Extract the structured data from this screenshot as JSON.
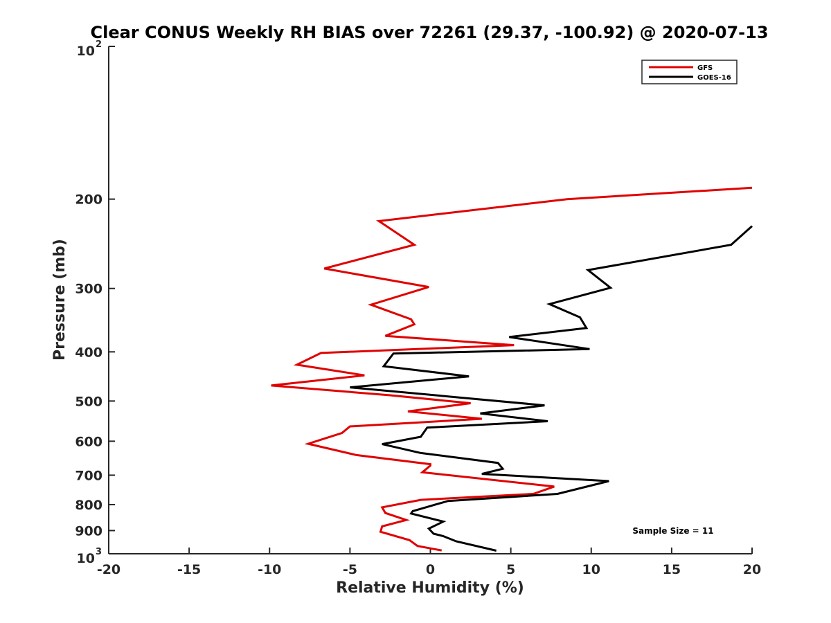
{
  "chart_data": {
    "type": "line",
    "title": "Clear CONUS Weekly RH BIAS over 72261 (29.37, -100.92) @ 2020-07-13",
    "xlabel": "Relative Humidity (%)",
    "ylabel": "Pressure (mb)",
    "xlim": [
      -20,
      20
    ],
    "ylim": [
      100,
      1000
    ],
    "y_scale": "log",
    "y_reversed": true,
    "grid": false,
    "legend_position": "top-right",
    "x_ticks": [
      "-20",
      "-15",
      "-10",
      "-5",
      "0",
      "5",
      "10",
      "15",
      "20"
    ],
    "y_ticks": [
      {
        "value": 100,
        "label": "10",
        "exp": "2"
      },
      {
        "value": 200,
        "label": "200",
        "exp": ""
      },
      {
        "value": 300,
        "label": "300",
        "exp": ""
      },
      {
        "value": 400,
        "label": "400",
        "exp": ""
      },
      {
        "value": 500,
        "label": "500",
        "exp": ""
      },
      {
        "value": 600,
        "label": "600",
        "exp": ""
      },
      {
        "value": 700,
        "label": "700",
        "exp": ""
      },
      {
        "value": 800,
        "label": "800",
        "exp": ""
      },
      {
        "value": 900,
        "label": "900",
        "exp": ""
      },
      {
        "value": 1000,
        "label": "10",
        "exp": "3"
      }
    ],
    "annotation": "Sample Size = 11",
    "series": [
      {
        "name": "GFS",
        "color": "#e00000",
        "points": [
          [
            20.0,
            190
          ],
          [
            8.5,
            200
          ],
          [
            -3.2,
            221
          ],
          [
            -1.0,
            246
          ],
          [
            -6.6,
            274
          ],
          [
            -0.1,
            298
          ],
          [
            -3.7,
            323
          ],
          [
            -1.2,
            345
          ],
          [
            -1.0,
            353
          ],
          [
            -2.8,
            372
          ],
          [
            5.2,
            388
          ],
          [
            -6.8,
            402
          ],
          [
            -8.3,
            424
          ],
          [
            -4.1,
            445
          ],
          [
            -9.9,
            466
          ],
          [
            -2.5,
            487
          ],
          [
            2.5,
            505
          ],
          [
            -1.4,
            524
          ],
          [
            3.2,
            542
          ],
          [
            -5.0,
            561
          ],
          [
            -5.5,
            578
          ],
          [
            -7.6,
            607
          ],
          [
            -4.6,
            639
          ],
          [
            0.0,
            666
          ],
          [
            0.0,
            670
          ],
          [
            -0.5,
            691
          ],
          [
            7.7,
            737
          ],
          [
            6.4,
            762
          ],
          [
            -0.6,
            783
          ],
          [
            -3.0,
            810
          ],
          [
            -2.8,
            831
          ],
          [
            -1.5,
            858
          ],
          [
            -3.0,
            883
          ],
          [
            -3.1,
            905
          ],
          [
            -1.3,
            940
          ],
          [
            -0.8,
            965
          ],
          [
            0.7,
            985
          ]
        ]
      },
      {
        "name": "GOES-16",
        "color": "#000000",
        "points": [
          [
            20.0,
            226
          ],
          [
            18.7,
            246
          ],
          [
            9.8,
            276
          ],
          [
            11.2,
            299
          ],
          [
            7.4,
            322
          ],
          [
            9.3,
            342
          ],
          [
            9.7,
            359
          ],
          [
            4.9,
            374
          ],
          [
            9.9,
            395
          ],
          [
            -2.3,
            403
          ],
          [
            -2.9,
            427
          ],
          [
            2.4,
            447
          ],
          [
            -5.0,
            470
          ],
          [
            1.8,
            492
          ],
          [
            7.1,
            510
          ],
          [
            3.1,
            529
          ],
          [
            7.3,
            548
          ],
          [
            -0.2,
            564
          ],
          [
            -0.6,
            588
          ],
          [
            -3.0,
            608
          ],
          [
            -0.6,
            633
          ],
          [
            4.2,
            662
          ],
          [
            4.5,
            680
          ],
          [
            3.2,
            696
          ],
          [
            11.1,
            719
          ],
          [
            7.9,
            762
          ],
          [
            1.1,
            787
          ],
          [
            -1.1,
            824
          ],
          [
            -1.2,
            833
          ],
          [
            0.8,
            864
          ],
          [
            -0.1,
            892
          ],
          [
            0.2,
            913
          ],
          [
            0.8,
            923
          ],
          [
            1.6,
            945
          ],
          [
            4.1,
            986
          ]
        ]
      }
    ]
  }
}
